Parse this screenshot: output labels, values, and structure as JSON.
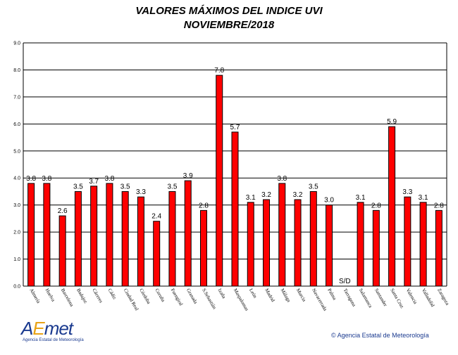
{
  "title_line1": "VALORES MÁXIMOS DEL INDICE UVI",
  "title_line2": "NOVIEMBRE/2018",
  "logo": {
    "text_a": "A",
    "text_e": "E",
    "text_met": "met",
    "subtitle": "Agencia Estatal de Meteorología"
  },
  "copyright": "© Agencia Estatal de Meteorología",
  "colors": {
    "bar": "#ff0000",
    "bar_border": "#000000",
    "grid": "#000000",
    "background": "#ffffff"
  },
  "chart_data": {
    "type": "bar",
    "title": "VALORES MÁXIMOS DEL INDICE UVI",
    "subtitle": "NOVIEMBRE/2018",
    "categories": [
      "Almería",
      "Huelva",
      "Barcelona",
      "Badajoz",
      "Cáceres",
      "Cádiz",
      "Ciudad Real",
      "Córdoba",
      "Coruña",
      "Fuengiral",
      "Granada",
      "S.Sebastián",
      "Izaña",
      "Maspalomas",
      "León",
      "Madrid",
      "Málaga",
      "Murcia",
      "Navacerrada",
      "Palma",
      "Tarragona",
      "Salamanca",
      "Santander",
      "Santa Cruz",
      "Valencia",
      "Valladolid",
      "Zaragoza"
    ],
    "values": [
      3.8,
      3.8,
      2.6,
      3.5,
      3.7,
      3.8,
      3.5,
      3.3,
      2.4,
      3.5,
      3.9,
      2.8,
      7.8,
      5.7,
      3.1,
      3.2,
      3.8,
      3.2,
      3.5,
      3.0,
      null,
      3.1,
      2.8,
      5.9,
      3.3,
      3.1,
      2.8
    ],
    "value_labels": [
      "3.8",
      "3.8",
      "2.6",
      "3.5",
      "3.7",
      "3.8",
      "3.5",
      "3.3",
      "2.4",
      "3.5",
      "3.9",
      "2.8",
      "7.8",
      "5.7",
      "3.1",
      "3.2",
      "3.8",
      "3.2",
      "3.5",
      "3.0",
      "S/D",
      "3.1",
      "2.8",
      "5.9",
      "3.3",
      "3.1",
      "2.8"
    ],
    "yticks": [
      "0.0",
      "1.0",
      "2.0",
      "3.0",
      "4.0",
      "5.0",
      "6.0",
      "7.0",
      "8.0",
      "9.0"
    ],
    "ylim": [
      0,
      9
    ],
    "grid": true,
    "legend": false
  }
}
